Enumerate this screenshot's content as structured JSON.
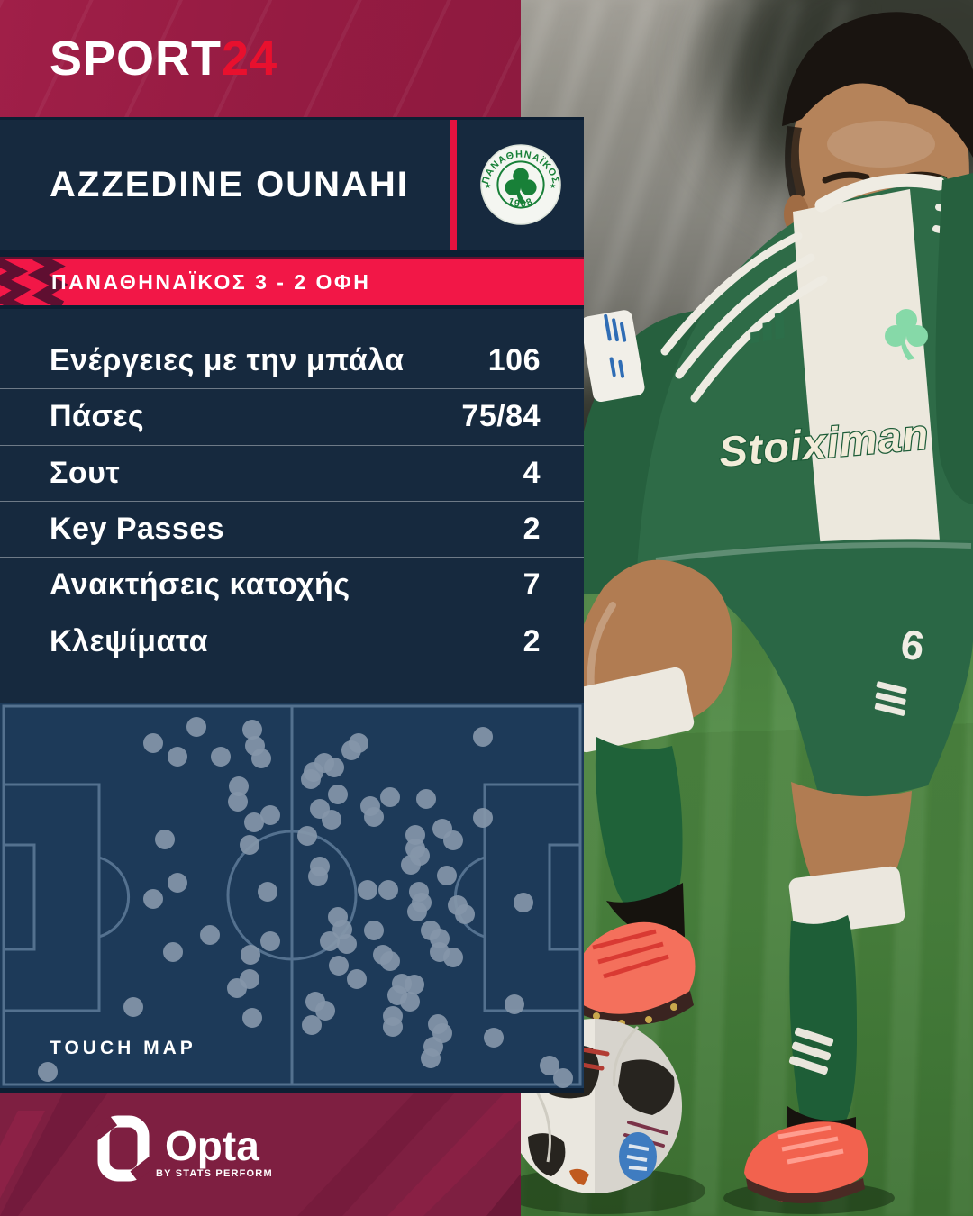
{
  "header": {
    "logo_text": "SPORT",
    "logo_accent": "24"
  },
  "player_section": {
    "name": "AZZEDINE OUNAHI",
    "badge": {
      "club": "ΠΑΝΑΘΗΝΑΪΚΟΣ",
      "year": "1908",
      "star": "★"
    }
  },
  "score_banner": {
    "text": "ΠΑΝΑΘΗΝΑΪΚΟΣ 3 - 2 ΟΦΗ"
  },
  "stats": [
    {
      "label": "Ενέργειες με την μπάλα",
      "value": "106"
    },
    {
      "label": "Πάσες",
      "value": "75/84"
    },
    {
      "label": "Σουτ",
      "value": "4"
    },
    {
      "label": "Key Passes",
      "value": "2"
    },
    {
      "label": "Ανακτήσεις κατοχής",
      "value": "7"
    },
    {
      "label": "Κλεψίματα",
      "value": "2"
    }
  ],
  "touch_map": {
    "title": "TOUCH MAP"
  },
  "footer": {
    "logo": "Opta",
    "byline": "BY STATS PERFORM"
  },
  "photo": {
    "jersey_sponsor": "Stoiximan",
    "shorts_number": "6"
  },
  "colors": {
    "crimson": "#9A1C44",
    "banner_red": "#F21747",
    "accent_red": "#E8102E",
    "navy_panel": "#16293E",
    "page_navy": "#0D1F33",
    "pitch_bg": "#1D3A59",
    "pitch_line": "#54718F",
    "dot": "#8496A9",
    "kit_green": "#2E6B47",
    "footer_maroon": "#7E1F41"
  },
  "chart_data": [
    {
      "type": "table",
      "title": "Azzedine Ounahi — ΠΑΝΑΘΗΝΑΪΚΟΣ 3 - 2 ΟΦΗ",
      "rows": [
        [
          "Ενέργειες με την μπάλα",
          "106"
        ],
        [
          "Πάσες",
          "75/84"
        ],
        [
          "Σουτ",
          "4"
        ],
        [
          "Key Passes",
          "2"
        ],
        [
          "Ανακτήσεις κατοχής",
          "7"
        ],
        [
          "Κλεψίματα",
          "2"
        ]
      ]
    },
    {
      "type": "scatter",
      "title": "TOUCH MAP",
      "x_range": [
        0,
        648
      ],
      "y_range": [
        0,
        428
      ],
      "note": "touch locations on horizontal pitch, origin top-left, px",
      "points": [
        [
          170,
          45
        ],
        [
          197,
          60
        ],
        [
          218,
          27
        ],
        [
          245,
          60
        ],
        [
          280,
          30
        ],
        [
          283,
          48
        ],
        [
          290,
          62
        ],
        [
          265,
          93
        ],
        [
          264,
          110
        ],
        [
          282,
          133
        ],
        [
          300,
          125
        ],
        [
          277,
          158
        ],
        [
          183,
          152
        ],
        [
          197,
          200
        ],
        [
          170,
          218
        ],
        [
          297,
          210
        ],
        [
          233,
          258
        ],
        [
          192,
          277
        ],
        [
          278,
          280
        ],
        [
          300,
          265
        ],
        [
          277,
          307
        ],
        [
          263,
          317
        ],
        [
          148,
          338
        ],
        [
          280,
          350
        ],
        [
          53,
          410
        ],
        [
          536,
          38
        ],
        [
          398,
          45
        ],
        [
          390,
          53
        ],
        [
          360,
          67
        ],
        [
          371,
          72
        ],
        [
          348,
          77
        ],
        [
          345,
          85
        ],
        [
          375,
          102
        ],
        [
          355,
          118
        ],
        [
          433,
          105
        ],
        [
          473,
          107
        ],
        [
          411,
          115
        ],
        [
          415,
          127
        ],
        [
          368,
          130
        ],
        [
          536,
          128
        ],
        [
          341,
          148
        ],
        [
          461,
          147
        ],
        [
          491,
          140
        ],
        [
          503,
          153
        ],
        [
          461,
          162
        ],
        [
          466,
          170
        ],
        [
          456,
          180
        ],
        [
          355,
          182
        ],
        [
          353,
          193
        ],
        [
          496,
          192
        ],
        [
          408,
          208
        ],
        [
          431,
          208
        ],
        [
          465,
          210
        ],
        [
          468,
          222
        ],
        [
          463,
          232
        ],
        [
          508,
          225
        ],
        [
          516,
          235
        ],
        [
          581,
          222
        ],
        [
          375,
          238
        ],
        [
          380,
          252
        ],
        [
          415,
          253
        ],
        [
          478,
          253
        ],
        [
          488,
          262
        ],
        [
          366,
          265
        ],
        [
          385,
          268
        ],
        [
          488,
          277
        ],
        [
          503,
          283
        ],
        [
          425,
          280
        ],
        [
          433,
          287
        ],
        [
          376,
          292
        ],
        [
          396,
          307
        ],
        [
          446,
          312
        ],
        [
          460,
          313
        ],
        [
          441,
          325
        ],
        [
          455,
          332
        ],
        [
          436,
          348
        ],
        [
          436,
          360
        ],
        [
          350,
          332
        ],
        [
          361,
          342
        ],
        [
          346,
          358
        ],
        [
          486,
          357
        ],
        [
          491,
          367
        ],
        [
          481,
          382
        ],
        [
          478,
          395
        ],
        [
          571,
          335
        ],
        [
          548,
          372
        ],
        [
          610,
          403
        ],
        [
          625,
          417
        ]
      ]
    }
  ]
}
